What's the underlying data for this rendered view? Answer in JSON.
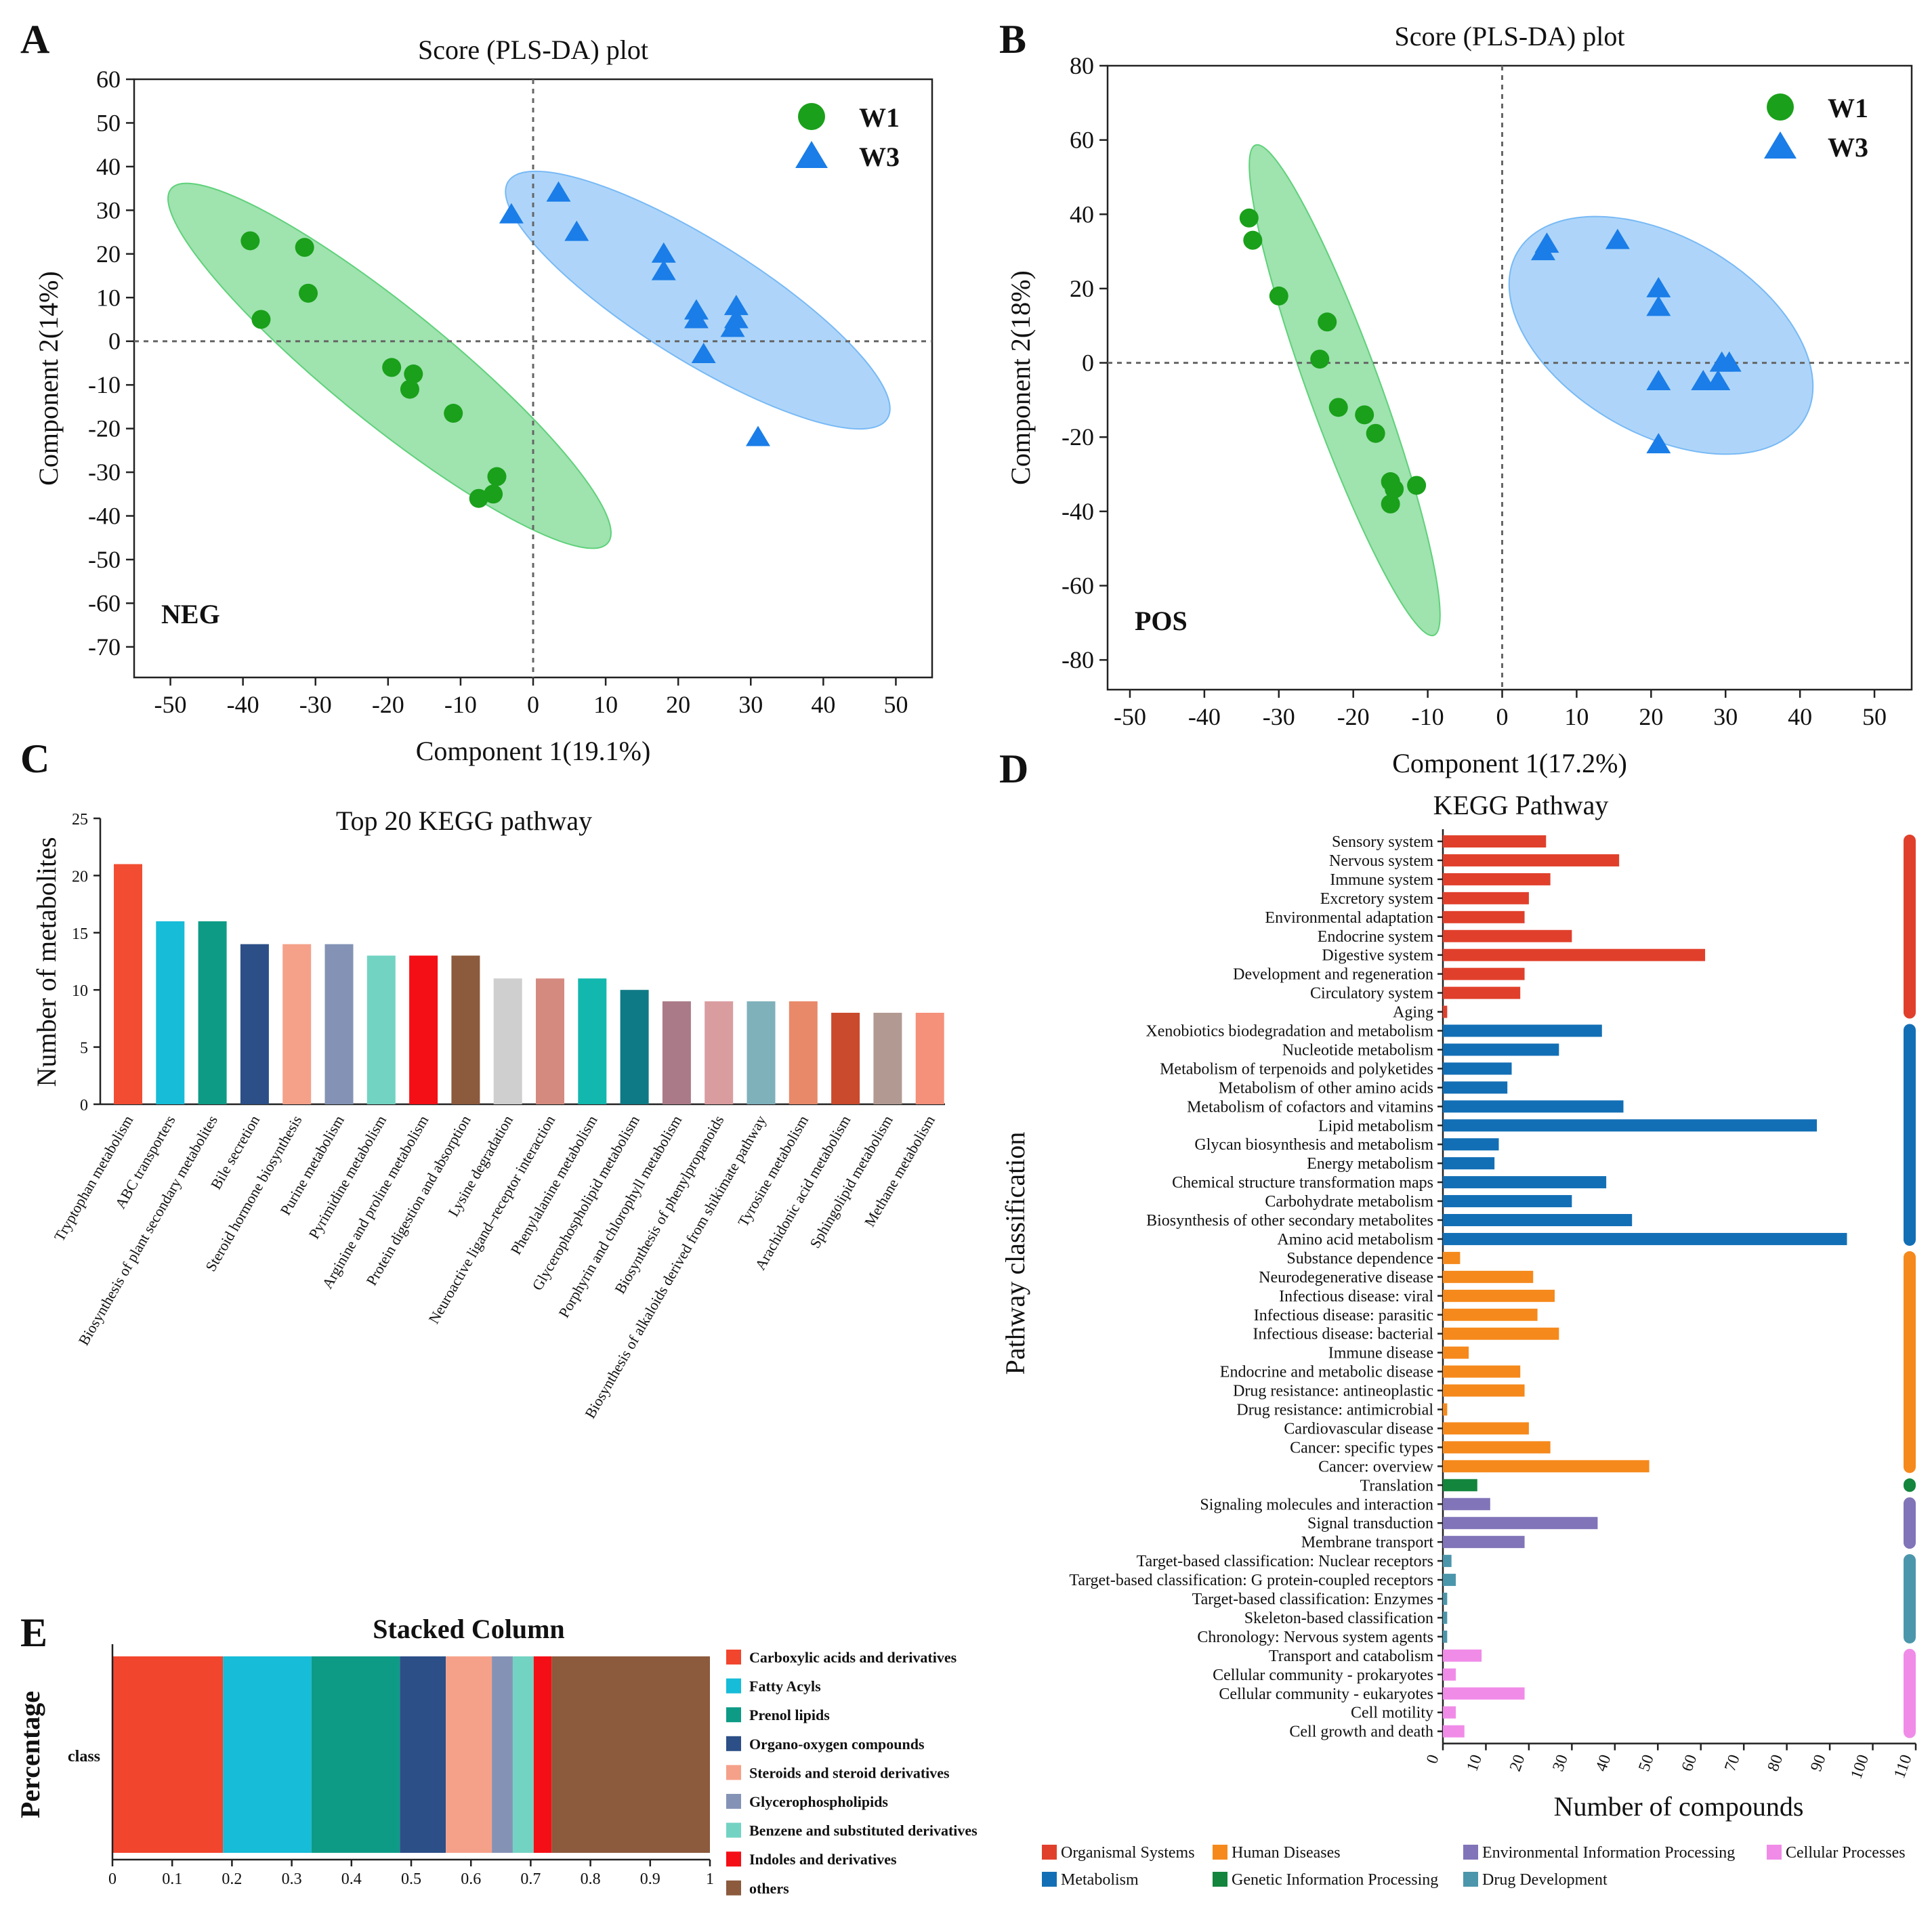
{
  "panels": {
    "A": "A",
    "B": "B",
    "C": "C",
    "D": "D",
    "E": "E"
  },
  "chart_data": [
    {
      "id": "A",
      "type": "scatter",
      "title": "Score (PLS-DA) plot",
      "xlabel": "Component 1(19.1%)",
      "ylabel": "Component 2(14%)",
      "annotation": "NEG",
      "xlim": [
        -55,
        55
      ],
      "ylim": [
        -77,
        60
      ],
      "xticks": [
        -50,
        -40,
        -30,
        -20,
        -10,
        0,
        10,
        20,
        30,
        40,
        50
      ],
      "yticks": [
        60,
        50,
        40,
        30,
        20,
        10,
        0,
        -10,
        -20,
        -30,
        -40,
        -50,
        -60,
        -70
      ],
      "legend_position": "top-right",
      "series": [
        {
          "name": "W1",
          "marker": "circle",
          "color": "#1aa01a",
          "x": [
            -39,
            -37.5,
            -31.5,
            -31,
            -19.5,
            -16.5,
            -17,
            -11,
            -5,
            -5.5,
            -7.5
          ],
          "y": [
            23,
            5,
            21.5,
            11,
            -6,
            -7.5,
            -11,
            -16.5,
            -31,
            -35,
            -36
          ]
        },
        {
          "name": "W3",
          "marker": "triangle",
          "color": "#1a7de8",
          "x": [
            -3,
            3.5,
            6,
            18,
            18,
            22.5,
            22.5,
            23.5,
            28,
            28,
            27.5,
            31
          ],
          "y": [
            29,
            34,
            25,
            20,
            16,
            7,
            5,
            -3,
            8,
            5,
            3,
            -22
          ]
        }
      ],
      "ellipses": [
        {
          "group": "W1",
          "color": "#5fd17a"
        },
        {
          "group": "W3",
          "color": "#78b9f5"
        }
      ]
    },
    {
      "id": "B",
      "type": "scatter",
      "title": "Score (PLS-DA) plot",
      "xlabel": "Component 1(17.2%)",
      "ylabel": "Component 2(18%)",
      "annotation": "POS",
      "xlim": [
        -53,
        55
      ],
      "ylim": [
        -88,
        80
      ],
      "xticks": [
        -50,
        -40,
        -30,
        -20,
        -10,
        0,
        10,
        20,
        30,
        40,
        50
      ],
      "yticks": [
        80,
        60,
        40,
        20,
        0,
        -20,
        -40,
        -60,
        -80
      ],
      "legend_position": "top-right",
      "series": [
        {
          "name": "W1",
          "marker": "circle",
          "color": "#1aa01a",
          "x": [
            -34,
            -33.5,
            -30,
            -23.5,
            -24.5,
            -22,
            -18.5,
            -17,
            -15,
            -14.5,
            -11.5,
            -15
          ],
          "y": [
            39,
            33,
            18,
            11,
            1,
            -12,
            -14,
            -19,
            -32,
            -34,
            -33,
            -38
          ]
        },
        {
          "name": "W3",
          "marker": "triangle",
          "color": "#1a7de8",
          "x": [
            6,
            5.5,
            15.5,
            21,
            21,
            21,
            21,
            27,
            29,
            29.5,
            30.5,
            29
          ],
          "y": [
            32,
            30,
            33,
            20,
            15,
            -5,
            -22,
            -5,
            -5,
            0,
            0,
            -5
          ]
        }
      ],
      "ellipses": [
        {
          "group": "W1",
          "color": "#5fd17a"
        },
        {
          "group": "W3",
          "color": "#78b9f5"
        }
      ]
    },
    {
      "id": "C",
      "type": "bar",
      "title": "Top 20 KEGG pathway",
      "xlabel": "",
      "ylabel": "Number of metabolites",
      "ylim": [
        0,
        25
      ],
      "yticks": [
        0,
        5,
        10,
        15,
        20,
        25
      ],
      "categories": [
        "Tryptophan metabolism",
        "ABC transporters",
        "Biosynthesis of plant secondary metabolites",
        "Bile secretion",
        "Steroid hormone biosynthesis",
        "Purine metabolism",
        "Pyrimidine metabolism",
        "Arginine and proline metabolism",
        "Protein digestion and absorption",
        "Lysine degradation",
        "Neuroactive ligand–receptor interaction",
        "Phenylalanine metabolism",
        "Glycerophospholipid metabolism",
        "Porphyrin and chlorophyll metabolism",
        "Biosynthesis of phenylpropanoids",
        "Biosynthesis of alkaloids derived from shikimate pathway",
        "Tyrosine metabolism",
        "Arachidonic acid metabolism",
        "Sphingolipid metabolism",
        "Methane metabolism"
      ],
      "values": [
        21,
        16,
        16,
        14,
        14,
        14,
        13,
        13,
        13,
        11,
        11,
        11,
        10,
        9,
        9,
        9,
        9,
        8,
        8,
        8
      ],
      "colors": [
        "#f24d33",
        "#16bcd8",
        "#0d9b86",
        "#2c4f87",
        "#f5a18a",
        "#8493b5",
        "#73d3c3",
        "#f40f16",
        "#8c5a3d",
        "#cfcfcf",
        "#d58a80",
        "#12b7ad",
        "#0e7a86",
        "#aa7a88",
        "#d99da0",
        "#7fb1bb",
        "#e8896a",
        "#c94a2c",
        "#b29a92",
        "#f5907a"
      ]
    },
    {
      "id": "D",
      "type": "bar",
      "orientation": "horizontal",
      "title": "KEGG Pathway",
      "xlabel": "Number of compounds",
      "ylabel": "Pathway classification",
      "xlim": [
        0,
        110
      ],
      "xticks": [
        0,
        10,
        20,
        30,
        40,
        50,
        60,
        70,
        80,
        90,
        100,
        110
      ],
      "categories": [
        "Sensory system",
        "Nervous system",
        "Immune system",
        "Excretory system",
        "Environmental adaptation",
        "Endocrine system",
        "Digestive system",
        "Development and regeneration",
        "Circulatory system",
        "Aging",
        "Xenobiotics biodegradation and metabolism",
        "Nucleotide metabolism",
        "Metabolism of terpenoids and polyketides",
        "Metabolism of other amino acids",
        "Metabolism of cofactors and vitamins",
        "Lipid metabolism",
        "Glycan biosynthesis and metabolism",
        "Energy metabolism",
        "Chemical structure transformation maps",
        "Carbohydrate metabolism",
        "Biosynthesis of other secondary metabolites",
        "Amino acid metabolism",
        "Substance dependence",
        "Neurodegenerative disease",
        "Infectious disease: viral",
        "Infectious disease: parasitic",
        "Infectious disease: bacterial",
        "Immune disease",
        "Endocrine and metabolic disease",
        "Drug resistance: antineoplastic",
        "Drug resistance: antimicrobial",
        "Cardiovascular disease",
        "Cancer: specific types",
        "Cancer: overview",
        "Translation",
        "Signaling molecules and interaction",
        "Signal transduction",
        "Membrane transport",
        "Target-based classification: Nuclear receptors",
        "Target-based classification: G protein-coupled receptors",
        "Target-based classification: Enzymes",
        "Skeleton-based classification",
        "Chronology: Nervous system agents",
        "Transport and catabolism",
        "Cellular community - prokaryotes",
        "Cellular community - eukaryotes",
        "Cell motility",
        "Cell growth and death"
      ],
      "values": [
        24,
        41,
        25,
        20,
        19,
        30,
        61,
        19,
        18,
        1,
        37,
        27,
        16,
        15,
        42,
        87,
        13,
        12,
        38,
        30,
        44,
        94,
        4,
        21,
        26,
        22,
        27,
        6,
        18,
        19,
        1,
        20,
        25,
        48,
        8,
        11,
        36,
        19,
        2,
        3,
        1,
        1,
        1,
        9,
        3,
        19,
        3,
        5
      ],
      "groups": [
        "Organismal Systems",
        "Organismal Systems",
        "Organismal Systems",
        "Organismal Systems",
        "Organismal Systems",
        "Organismal Systems",
        "Organismal Systems",
        "Organismal Systems",
        "Organismal Systems",
        "Organismal Systems",
        "Metabolism",
        "Metabolism",
        "Metabolism",
        "Metabolism",
        "Metabolism",
        "Metabolism",
        "Metabolism",
        "Metabolism",
        "Metabolism",
        "Metabolism",
        "Metabolism",
        "Metabolism",
        "Human Diseases",
        "Human Diseases",
        "Human Diseases",
        "Human Diseases",
        "Human Diseases",
        "Human Diseases",
        "Human Diseases",
        "Human Diseases",
        "Human Diseases",
        "Human Diseases",
        "Human Diseases",
        "Human Diseases",
        "Genetic Information Processing",
        "Environmental Information Processing",
        "Environmental Information Processing",
        "Environmental Information Processing",
        "Drug Development",
        "Drug Development",
        "Drug Development",
        "Drug Development",
        "Drug Development",
        "Cellular Processes",
        "Cellular Processes",
        "Cellular Processes",
        "Cellular Processes",
        "Cellular Processes"
      ],
      "legend": [
        {
          "name": "Organismal Systems",
          "color": "#e0402b"
        },
        {
          "name": "Human Diseases",
          "color": "#f5891c"
        },
        {
          "name": "Environmental Information Processing",
          "color": "#8174b8"
        },
        {
          "name": "Cellular Processes",
          "color": "#f08ce8"
        },
        {
          "name": "Metabolism",
          "color": "#136fb5"
        },
        {
          "name": "Genetic Information Processing",
          "color": "#13853d"
        },
        {
          "name": "Drug Development",
          "color": "#4c96ab"
        }
      ]
    },
    {
      "id": "E",
      "type": "bar",
      "orientation": "horizontal-stacked",
      "title": "Stacked Column",
      "xlabel": "",
      "ylabel": "Percentage",
      "category": "class",
      "xlim": [
        0,
        1
      ],
      "xticks": [
        "0",
        "0.1",
        "0.2",
        "0.3",
        "0.4",
        "0.5",
        "0.6",
        "0.7",
        "0.8",
        "0.9",
        "1"
      ],
      "series": [
        {
          "name": "Carboxylic acids and derivatives",
          "value": 0.185,
          "color": "#f2452d"
        },
        {
          "name": "Fatty Acyls",
          "value": 0.148,
          "color": "#16bcd8"
        },
        {
          "name": "Prenol lipids",
          "value": 0.148,
          "color": "#0d9b86"
        },
        {
          "name": "Organo-oxygen compounds",
          "value": 0.077,
          "color": "#2c4f87"
        },
        {
          "name": "Steroids and steroid derivatives",
          "value": 0.077,
          "color": "#f5a18a"
        },
        {
          "name": "Glycerophospholipids",
          "value": 0.035,
          "color": "#8493b5"
        },
        {
          "name": "Benzene and substituted derivatives",
          "value": 0.035,
          "color": "#73d3c3"
        },
        {
          "name": "Indoles and derivatives",
          "value": 0.03,
          "color": "#f40f16"
        },
        {
          "name": "others",
          "value": 0.265,
          "color": "#8c5a3d"
        }
      ]
    }
  ]
}
